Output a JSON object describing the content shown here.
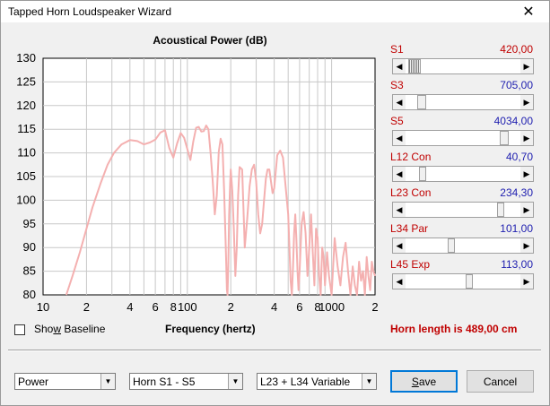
{
  "window": {
    "title": "Tapped Horn Loudspeaker Wizard",
    "close_glyph": "✕"
  },
  "chart_data": {
    "type": "line",
    "title": "Acoustical Power (dB)",
    "xlabel": "Frequency (hertz)",
    "ylabel": "",
    "x_scale": "log",
    "xlim": [
      10,
      2000
    ],
    "ylim": [
      80,
      130
    ],
    "yticks": [
      80,
      85,
      90,
      95,
      100,
      105,
      110,
      115,
      120,
      125,
      130
    ],
    "xtick_labels": [
      {
        "value": 10,
        "label": "10"
      },
      {
        "value": 20,
        "label": "2"
      },
      {
        "value": 40,
        "label": "4"
      },
      {
        "value": 60,
        "label": "6"
      },
      {
        "value": 80,
        "label": "8"
      },
      {
        "value": 100,
        "label": "100"
      },
      {
        "value": 200,
        "label": "2"
      },
      {
        "value": 400,
        "label": "4"
      },
      {
        "value": 600,
        "label": "6"
      },
      {
        "value": 800,
        "label": "8"
      },
      {
        "value": 1000,
        "label": "1000"
      },
      {
        "value": 2000,
        "label": "2"
      }
    ],
    "grid": true,
    "line_color": "#f4b0b0",
    "series": [
      {
        "x": [
          14.5,
          16,
          18,
          20,
          22,
          25,
          28,
          31,
          35,
          40,
          45,
          50,
          55,
          60,
          65,
          70,
          75,
          80,
          85,
          90,
          95,
          100,
          105,
          110,
          115,
          120,
          125,
          130,
          135,
          140,
          145,
          150,
          155,
          160,
          165,
          170,
          175,
          180,
          185,
          188,
          190,
          192,
          195,
          198,
          200,
          205,
          210,
          215,
          220,
          225,
          230,
          240,
          250,
          260,
          270,
          280,
          290,
          300,
          310,
          320,
          330,
          340,
          350,
          360,
          370,
          380,
          390,
          400,
          420,
          440,
          460,
          480,
          500,
          510,
          520,
          530,
          540,
          550,
          560,
          570,
          580,
          590,
          600,
          620,
          640,
          660,
          680,
          700,
          720,
          740,
          760,
          780,
          800,
          820,
          840,
          860,
          880,
          900,
          930,
          960,
          1000,
          1050,
          1100,
          1150,
          1200,
          1250,
          1300,
          1350,
          1400,
          1450,
          1500,
          1550,
          1600,
          1650,
          1700,
          1750,
          1800,
          1850,
          1900,
          1950,
          2000
        ],
        "y": [
          80,
          84,
          89,
          94,
          98.5,
          103.5,
          107.5,
          110,
          111.8,
          112.7,
          112.5,
          111.8,
          112.2,
          112.8,
          114.3,
          114.8,
          111,
          109,
          112,
          114.2,
          113.2,
          110.8,
          108.5,
          112.5,
          115.3,
          115.5,
          114.5,
          114.6,
          115.8,
          115,
          110,
          104,
          97,
          101,
          110.2,
          113,
          111.8,
          102,
          89,
          81,
          80,
          86,
          97,
          103.5,
          106.5,
          102,
          94,
          84,
          90,
          101,
          107,
          106.5,
          90,
          96,
          103,
          106.5,
          107.5,
          104,
          97,
          93,
          95,
          100,
          104.5,
          106.5,
          106.5,
          104,
          101.5,
          102.5,
          109.5,
          110.5,
          109,
          103,
          97,
          90,
          83,
          80,
          86,
          93,
          97,
          92,
          85,
          81,
          85,
          95,
          97.5,
          93,
          84,
          90,
          97,
          89,
          82,
          94,
          92,
          84,
          80,
          90,
          88,
          82,
          89,
          84,
          80,
          92,
          86,
          82,
          88,
          91,
          85,
          80,
          86,
          82,
          80,
          87,
          83,
          85,
          80,
          88,
          84,
          81,
          87,
          85,
          84
        ]
      }
    ]
  },
  "params": [
    {
      "label": "S1",
      "value": "420,00",
      "value_color": "red",
      "thumb": 0.02,
      "thumb_width": 0.11,
      "hatched": true
    },
    {
      "label": "S3",
      "value": "705,00",
      "value_color": "blue",
      "thumb": 0.1,
      "thumb_width": 0.08,
      "hatched": false
    },
    {
      "label": "S5",
      "value": "4034,00",
      "value_color": "blue",
      "thumb": 0.82,
      "thumb_width": 0.08,
      "hatched": false
    },
    {
      "label": "L12  Con",
      "value": "40,70",
      "value_color": "blue",
      "thumb": 0.12,
      "thumb_width": 0.06,
      "hatched": false
    },
    {
      "label": "L23  Con",
      "value": "234,30",
      "value_color": "blue",
      "thumb": 0.8,
      "thumb_width": 0.04,
      "hatched": false
    },
    {
      "label": "L34  Par",
      "value": "101,00",
      "value_color": "blue",
      "thumb": 0.37,
      "thumb_width": 0.04,
      "hatched": false
    },
    {
      "label": "L45  Exp",
      "value": "113,00",
      "value_color": "blue",
      "thumb": 0.52,
      "thumb_width": 0.04,
      "hatched": false
    }
  ],
  "footer": {
    "show_baseline_label": "Show Baseline",
    "frequency_label": "Frequency (hertz)",
    "horn_length": "Horn length is 489,00 cm"
  },
  "combos": {
    "mode": "Power",
    "horn": "Horn S1 - S5",
    "variable": "L23 + L34 Variable"
  },
  "buttons": {
    "save": "Save",
    "cancel": "Cancel"
  },
  "icons": {
    "left_arrow": "◀",
    "right_arrow": "▶",
    "down_arrow": "▼"
  }
}
